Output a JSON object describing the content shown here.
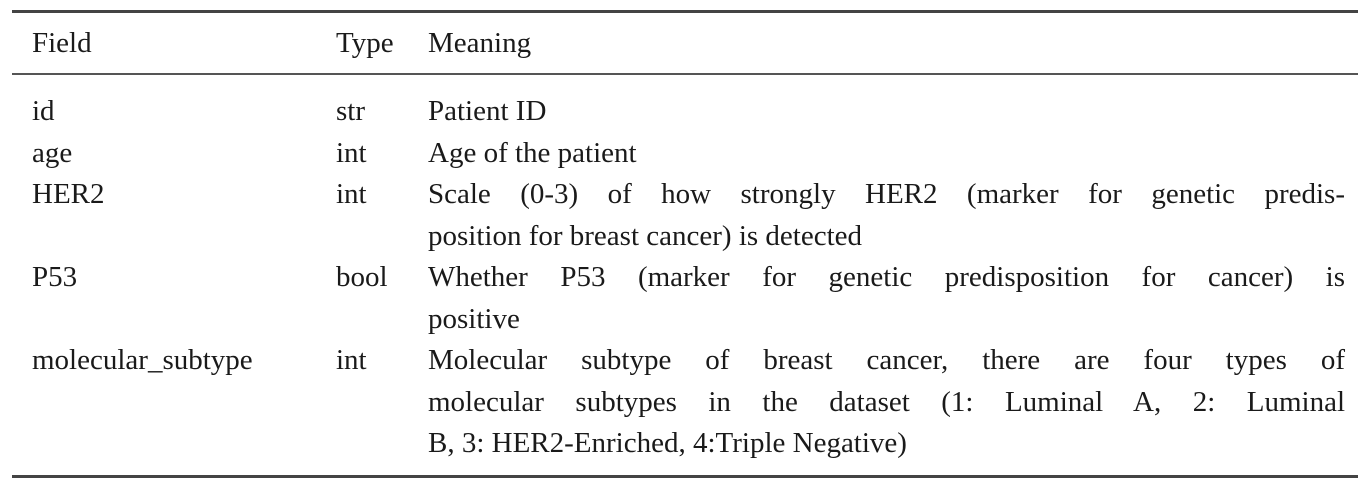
{
  "table": {
    "headers": {
      "field": "Field",
      "type": "Type",
      "meaning": "Meaning"
    },
    "rows": [
      {
        "field": "id",
        "type": "str",
        "meaning_lines": [
          "Patient ID"
        ]
      },
      {
        "field": "age",
        "type": "int",
        "meaning_lines": [
          "Age of the patient"
        ]
      },
      {
        "field": "HER2",
        "type": "int",
        "meaning_lines": [
          "Scale (0-3) of how strongly HER2 (marker for genetic predis-",
          "position for breast cancer) is detected"
        ]
      },
      {
        "field": "P53",
        "type": "bool",
        "meaning_lines": [
          "Whether P53 (marker for genetic predisposition for cancer) is",
          "positive"
        ]
      },
      {
        "field": "molecular_subtype",
        "type": "int",
        "meaning_lines": [
          "Molecular subtype of breast cancer, there are four types of",
          "molecular subtypes in the dataset (1: Luminal A, 2: Luminal",
          "B, 3: HER2-Enriched, 4:Triple Negative)"
        ]
      }
    ]
  }
}
